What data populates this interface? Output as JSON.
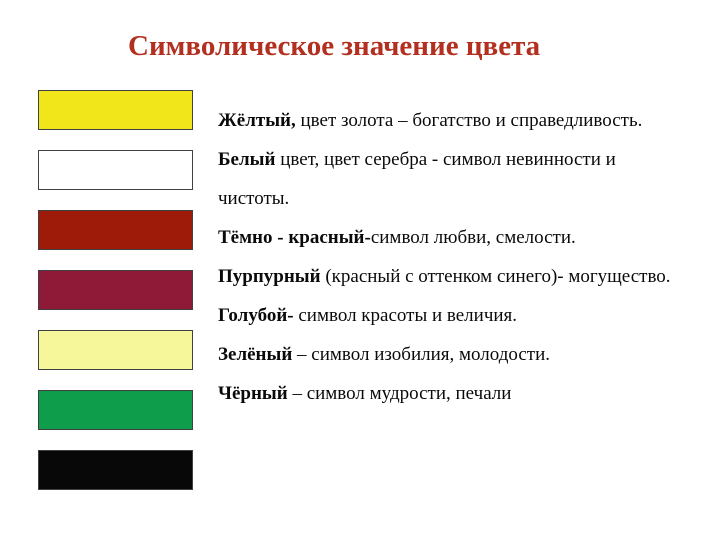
{
  "title": "Символическое значение цвета",
  "title_color": "#b33020",
  "title_fontsize": 29,
  "background_color": "#ffffff",
  "swatches": [
    {
      "color": "#f0e61a",
      "border": "#404040"
    },
    {
      "color": "#ffffff",
      "border": "#404040"
    },
    {
      "color": "#9e1b0a",
      "border": "#404040"
    },
    {
      "color": "#8e1a38",
      "border": "#404040"
    },
    {
      "color": "#f6f69a",
      "border": "#404040"
    },
    {
      "color": "#0e9d4a",
      "border": "#404040"
    },
    {
      "color": "#080808",
      "border": "#404040"
    }
  ],
  "lines": {
    "l1a": "Жёлтый, ",
    "l1b": "цвет золота – богатство и справедливость.",
    "l2a": "Белый ",
    "l2b": "цвет, цвет серебра - символ невинности и чистоты.",
    "l3a": "Тёмно - красный-",
    "l3b": "символ любви, смелости.",
    "l4a": "Пурпурный ",
    "l4b": "(красный с оттенком синего)- могущество.",
    "l5a": "Голубой- ",
    "l5b": "символ красоты и величия.",
    "l6a": "Зелёный ",
    "l6b": "– символ изобилия, молодости.",
    "l7a": "Чёрный ",
    "l7b": "– символ мудрости, печали"
  },
  "body_fontsize": 19,
  "body_color": "#0a0a0a"
}
